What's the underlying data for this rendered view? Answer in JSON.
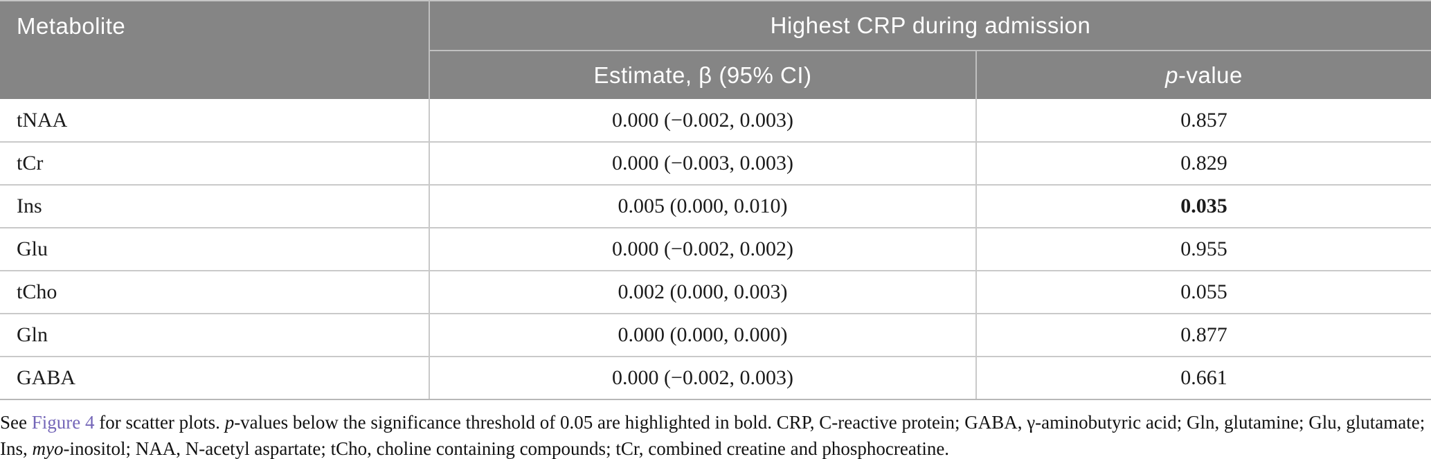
{
  "table": {
    "header": {
      "metabolite": "Metabolite",
      "group": "Highest CRP during admission",
      "estimate": "Estimate, β (95% CI)",
      "pvalue_italic": "p",
      "pvalue_suffix": "-value"
    },
    "rows": [
      {
        "metabolite": "tNAA",
        "estimate": "0.000 (−0.002, 0.003)",
        "p_value": "0.857",
        "significant": false
      },
      {
        "metabolite": "tCr",
        "estimate": "0.000 (−0.003, 0.003)",
        "p_value": "0.829",
        "significant": false
      },
      {
        "metabolite": "Ins",
        "estimate": "0.005 (0.000, 0.010)",
        "p_value": "0.035",
        "significant": true
      },
      {
        "metabolite": "Glu",
        "estimate": "0.000 (−0.002, 0.002)",
        "p_value": "0.955",
        "significant": false
      },
      {
        "metabolite": "tCho",
        "estimate": "0.002 (0.000, 0.003)",
        "p_value": "0.055",
        "significant": false
      },
      {
        "metabolite": "Gln",
        "estimate": "0.000 (0.000, 0.000)",
        "p_value": "0.877",
        "significant": false
      },
      {
        "metabolite": "GABA",
        "estimate": "0.000 (−0.002, 0.003)",
        "p_value": "0.661",
        "significant": false
      }
    ]
  },
  "footnote": {
    "parts": {
      "p1": "See ",
      "link": "Figure 4",
      "p2": " for scatter plots. ",
      "p3": "p",
      "p4": "-values below the significance threshold of 0.05 are highlighted in bold. CRP, C-reactive protein; GABA, γ-aminobutyric acid; Gln, glutamine; Glu, glutamate; Ins, ",
      "p5": "myo",
      "p6": "-inositol; NAA, N-acetyl aspartate; tCho, choline containing compounds; tCr, combined creatine and phosphocreatine."
    }
  },
  "colors": {
    "header_bg": "#858585",
    "header_text": "#ffffff",
    "link": "#7466b8",
    "row_border": "#c9c9c9",
    "body_text": "#1b1b1b"
  },
  "chart_data": {
    "type": "table",
    "title": "Highest CRP during admission",
    "columns": [
      "Metabolite",
      "Estimate, β (95% CI)",
      "p-value"
    ],
    "rows": [
      [
        "tNAA",
        "0.000 (−0.002, 0.003)",
        "0.857"
      ],
      [
        "tCr",
        "0.000 (−0.003, 0.003)",
        "0.829"
      ],
      [
        "Ins",
        "0.005 (0.000, 0.010)",
        "0.035"
      ],
      [
        "Glu",
        "0.000 (−0.002, 0.002)",
        "0.955"
      ],
      [
        "tCho",
        "0.002 (0.000, 0.003)",
        "0.055"
      ],
      [
        "Gln",
        "0.000 (0.000, 0.000)",
        "0.877"
      ],
      [
        "GABA",
        "0.000 (−0.002, 0.003)",
        "0.661"
      ]
    ]
  }
}
